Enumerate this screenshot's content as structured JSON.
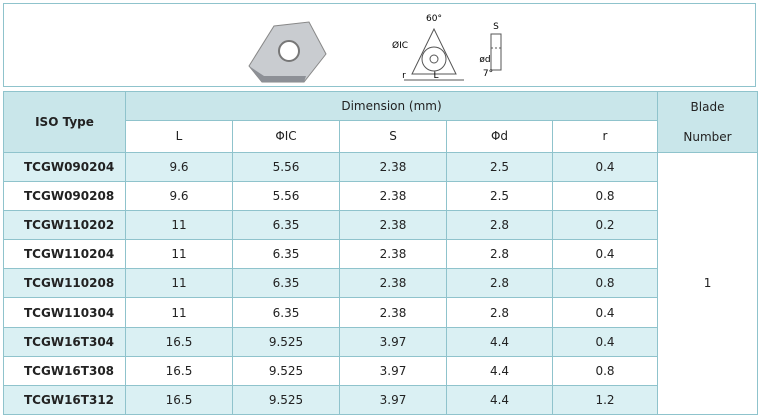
{
  "diagram": {
    "angle": "60°",
    "ic": "ØIC",
    "length": "L",
    "radius": "r",
    "thickness": "S",
    "hole": "ød",
    "clearance": "7°"
  },
  "table": {
    "headers": {
      "iso_type": "ISO Type",
      "dimension": "Dimension (mm)",
      "blade": "Blade",
      "blade_2": "Number",
      "columns": [
        "L",
        "ΦIC",
        "S",
        "Φd",
        "r"
      ]
    },
    "rows": [
      [
        "TCGW090204",
        "9.6",
        "5.56",
        "2.38",
        "2.5",
        "0.4"
      ],
      [
        "TCGW090208",
        "9.6",
        "5.56",
        "2.38",
        "2.5",
        "0.8"
      ],
      [
        "TCGW110202",
        "11",
        "6.35",
        "2.38",
        "2.8",
        "0.2"
      ],
      [
        "TCGW110204",
        "11",
        "6.35",
        "2.38",
        "2.8",
        "0.4"
      ],
      [
        "TCGW110208",
        "11",
        "6.35",
        "2.38",
        "2.8",
        "0.8"
      ],
      [
        "TCGW110304",
        "11",
        "6.35",
        "2.38",
        "2.8",
        "0.4"
      ],
      [
        "TCGW16T304",
        "16.5",
        "9.525",
        "3.97",
        "4.4",
        "0.4"
      ],
      [
        "TCGW16T308",
        "16.5",
        "9.525",
        "3.97",
        "4.4",
        "0.8"
      ],
      [
        "TCGW16T312",
        "16.5",
        "9.525",
        "3.97",
        "4.4",
        "1.2"
      ]
    ],
    "blade_number": "1"
  }
}
